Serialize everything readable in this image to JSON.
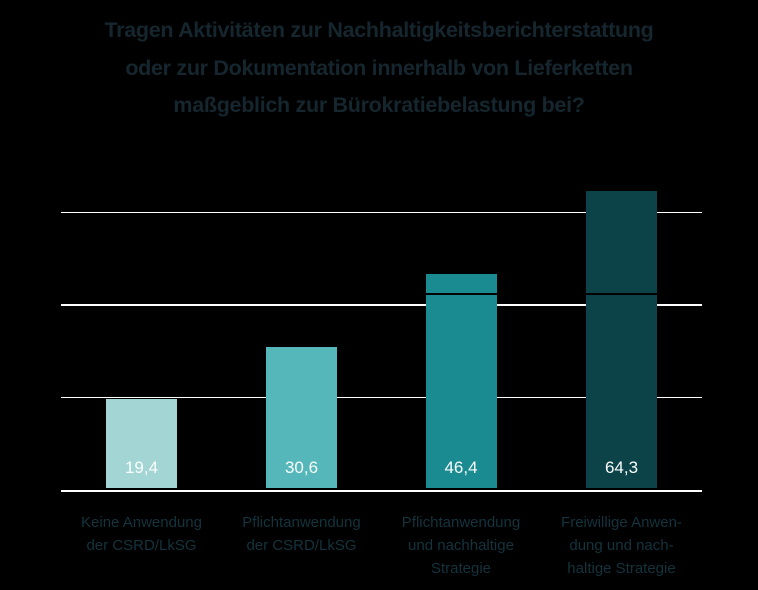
{
  "title": {
    "text": "Tragen Aktivitäten zur Nachhaltigkeitsberichterstattung\noder zur Dokumentation innerhalb von Lieferketten\nmaßgeblich zur Bürokratiebelastung bei?",
    "color": "#15262e"
  },
  "chart_data": {
    "type": "bar",
    "title": "Tragen Aktivitäten zur Nachhaltigkeitsberichterstattung oder zur Dokumentation innerhalb von Lieferketten maßgeblich zur Bürokratiebelastung bei?",
    "categories": [
      "Keine Anwendung\nder CSRD/LkSG",
      "Pflichtanwendung\nder CSRD/LkSG",
      "Pflichtanwendung\nund nachhaltige\nStrategie",
      "Freiwillige Anwen-\ndung und nach-\nhaltige Strategie"
    ],
    "values": [
      19.4,
      30.6,
      46.4,
      64.3
    ],
    "value_labels": [
      "19,4",
      "30,6",
      "46,4",
      "64,3"
    ],
    "bar_colors": [
      "#a3d5d4",
      "#55b7ba",
      "#1a8b91",
      "#0c4349"
    ],
    "xlabel": "",
    "ylabel": "",
    "ylim": [
      0,
      70
    ],
    "gridline_values": [
      20,
      40,
      60
    ],
    "gridline_color": "#ffffff",
    "axis_line_color": "#ffffff",
    "reference_line": {
      "value": 42.2,
      "color": "#000000"
    },
    "value_label_color": "#fafdfd",
    "category_label_color": "#14333d",
    "background_color": "#000000",
    "legend": "none",
    "grid": "horizontal"
  }
}
